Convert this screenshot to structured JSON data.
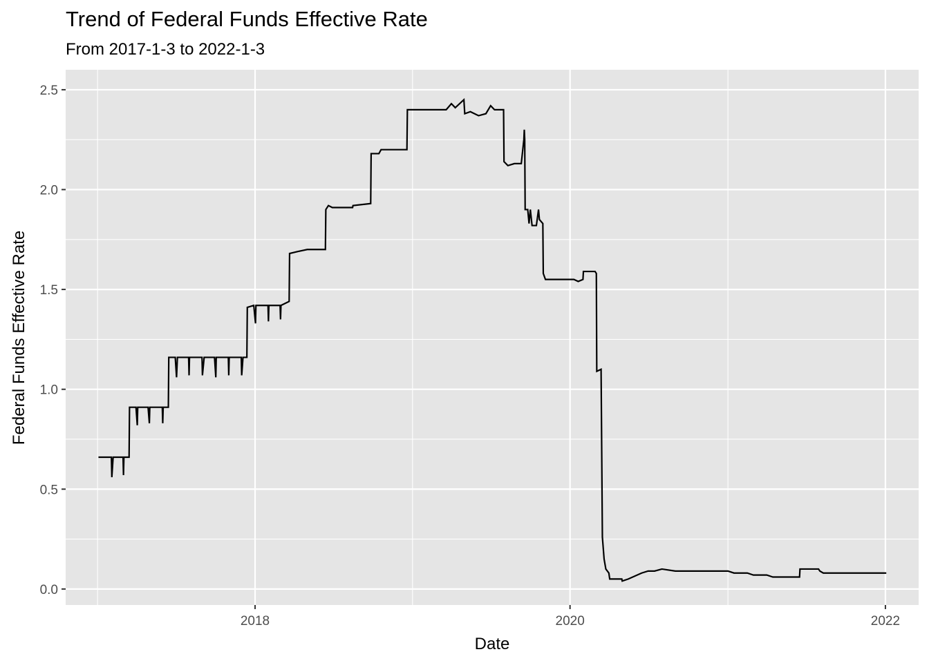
{
  "chart_data": {
    "type": "line",
    "title": "Trend of Federal Funds Effective Rate",
    "subtitle": "From 2017-1-3 to 2022-1-3",
    "xlabel": "Date",
    "ylabel": "Federal Funds Effective Rate",
    "x_ticks": [
      "2018",
      "2020",
      "2022"
    ],
    "y_ticks": [
      "0.0",
      "0.5",
      "1.0",
      "1.5",
      "2.0",
      "2.5"
    ],
    "xlim": [
      "2016-10-19",
      "2022-03-19"
    ],
    "ylim": [
      -0.08,
      2.6
    ],
    "grid": true,
    "line_color": "#000000",
    "panel_color": "#e5e5e5",
    "series": [
      {
        "values": [
          [
            "2017-01-03",
            0.66
          ],
          [
            "2017-02-02",
            0.66
          ],
          [
            "2017-02-03",
            0.56
          ],
          [
            "2017-02-06",
            0.66
          ],
          [
            "2017-03-01",
            0.66
          ],
          [
            "2017-03-02",
            0.57
          ],
          [
            "2017-03-03",
            0.66
          ],
          [
            "2017-03-15",
            0.66
          ],
          [
            "2017-03-16",
            0.91
          ],
          [
            "2017-03-31",
            0.91
          ],
          [
            "2017-04-03",
            0.82
          ],
          [
            "2017-04-04",
            0.91
          ],
          [
            "2017-04-28",
            0.91
          ],
          [
            "2017-05-01",
            0.83
          ],
          [
            "2017-05-02",
            0.91
          ],
          [
            "2017-05-31",
            0.91
          ],
          [
            "2017-06-01",
            0.83
          ],
          [
            "2017-06-02",
            0.91
          ],
          [
            "2017-06-14",
            0.91
          ],
          [
            "2017-06-15",
            1.16
          ],
          [
            "2017-06-30",
            1.16
          ],
          [
            "2017-07-03",
            1.06
          ],
          [
            "2017-07-05",
            1.16
          ],
          [
            "2017-07-31",
            1.16
          ],
          [
            "2017-08-01",
            1.07
          ],
          [
            "2017-08-02",
            1.16
          ],
          [
            "2017-08-31",
            1.16
          ],
          [
            "2017-09-01",
            1.07
          ],
          [
            "2017-09-05",
            1.16
          ],
          [
            "2017-09-29",
            1.16
          ],
          [
            "2017-10-02",
            1.06
          ],
          [
            "2017-10-03",
            1.16
          ],
          [
            "2017-10-31",
            1.16
          ],
          [
            "2017-11-01",
            1.07
          ],
          [
            "2017-11-02",
            1.16
          ],
          [
            "2017-11-30",
            1.16
          ],
          [
            "2017-12-01",
            1.07
          ],
          [
            "2017-12-04",
            1.16
          ],
          [
            "2017-12-13",
            1.16
          ],
          [
            "2017-12-14",
            1.41
          ],
          [
            "2017-12-29",
            1.42
          ],
          [
            "2018-01-02",
            1.33
          ],
          [
            "2018-01-03",
            1.42
          ],
          [
            "2018-01-31",
            1.42
          ],
          [
            "2018-02-01",
            1.34
          ],
          [
            "2018-02-02",
            1.42
          ],
          [
            "2018-02-28",
            1.42
          ],
          [
            "2018-03-01",
            1.35
          ],
          [
            "2018-03-02",
            1.42
          ],
          [
            "2018-03-21",
            1.44
          ],
          [
            "2018-03-22",
            1.68
          ],
          [
            "2018-04-10",
            1.69
          ],
          [
            "2018-05-02",
            1.7
          ],
          [
            "2018-06-13",
            1.7
          ],
          [
            "2018-06-14",
            1.9
          ],
          [
            "2018-06-20",
            1.92
          ],
          [
            "2018-06-29",
            1.91
          ],
          [
            "2018-08-15",
            1.91
          ],
          [
            "2018-08-16",
            1.92
          ],
          [
            "2018-09-26",
            1.93
          ],
          [
            "2018-09-27",
            2.18
          ],
          [
            "2018-10-15",
            2.18
          ],
          [
            "2018-10-20",
            2.2
          ],
          [
            "2018-11-15",
            2.2
          ],
          [
            "2018-12-19",
            2.2
          ],
          [
            "2018-12-20",
            2.4
          ],
          [
            "2019-03-20",
            2.4
          ],
          [
            "2019-04-01",
            2.43
          ],
          [
            "2019-04-10",
            2.41
          ],
          [
            "2019-04-30",
            2.45
          ],
          [
            "2019-05-02",
            2.38
          ],
          [
            "2019-05-15",
            2.39
          ],
          [
            "2019-06-03",
            2.37
          ],
          [
            "2019-06-20",
            2.38
          ],
          [
            "2019-07-01",
            2.42
          ],
          [
            "2019-07-10",
            2.4
          ],
          [
            "2019-07-31",
            2.4
          ],
          [
            "2019-08-01",
            2.14
          ],
          [
            "2019-08-10",
            2.12
          ],
          [
            "2019-08-25",
            2.13
          ],
          [
            "2019-09-10",
            2.13
          ],
          [
            "2019-09-16",
            2.25
          ],
          [
            "2019-09-17",
            2.3
          ],
          [
            "2019-09-18",
            2.25
          ],
          [
            "2019-09-19",
            1.9
          ],
          [
            "2019-09-25",
            1.9
          ],
          [
            "2019-09-28",
            1.83
          ],
          [
            "2019-10-01",
            1.9
          ],
          [
            "2019-10-05",
            1.82
          ],
          [
            "2019-10-15",
            1.82
          ],
          [
            "2019-10-20",
            1.9
          ],
          [
            "2019-10-22",
            1.85
          ],
          [
            "2019-10-30",
            1.83
          ],
          [
            "2019-10-31",
            1.58
          ],
          [
            "2019-11-05",
            1.55
          ],
          [
            "2019-12-31",
            1.55
          ],
          [
            "2020-01-10",
            1.55
          ],
          [
            "2020-01-20",
            1.54
          ],
          [
            "2020-01-31",
            1.55
          ],
          [
            "2020-02-01",
            1.59
          ],
          [
            "2020-02-28",
            1.59
          ],
          [
            "2020-03-02",
            1.58
          ],
          [
            "2020-03-03",
            1.09
          ],
          [
            "2020-03-13",
            1.1
          ],
          [
            "2020-03-16",
            0.26
          ],
          [
            "2020-03-20",
            0.15
          ],
          [
            "2020-03-24",
            0.1
          ],
          [
            "2020-03-31",
            0.08
          ],
          [
            "2020-04-02",
            0.05
          ],
          [
            "2020-04-30",
            0.05
          ],
          [
            "2020-05-01",
            0.04
          ],
          [
            "2020-05-15",
            0.05
          ],
          [
            "2020-06-15",
            0.08
          ],
          [
            "2020-06-30",
            0.09
          ],
          [
            "2020-07-15",
            0.09
          ],
          [
            "2020-08-01",
            0.1
          ],
          [
            "2020-09-01",
            0.09
          ],
          [
            "2020-12-31",
            0.09
          ],
          [
            "2021-01-01",
            0.09
          ],
          [
            "2021-01-15",
            0.08
          ],
          [
            "2021-02-15",
            0.08
          ],
          [
            "2021-03-01",
            0.07
          ],
          [
            "2021-03-31",
            0.07
          ],
          [
            "2021-04-01",
            0.07
          ],
          [
            "2021-04-15",
            0.06
          ],
          [
            "2021-05-31",
            0.06
          ],
          [
            "2021-06-01",
            0.06
          ],
          [
            "2021-06-16",
            0.06
          ],
          [
            "2021-06-17",
            0.1
          ],
          [
            "2021-07-30",
            0.1
          ],
          [
            "2021-08-02",
            0.09
          ],
          [
            "2021-08-10",
            0.08
          ],
          [
            "2021-09-01",
            0.08
          ],
          [
            "2021-10-01",
            0.08
          ],
          [
            "2021-12-31",
            0.08
          ],
          [
            "2022-01-03",
            0.08
          ]
        ]
      }
    ]
  }
}
